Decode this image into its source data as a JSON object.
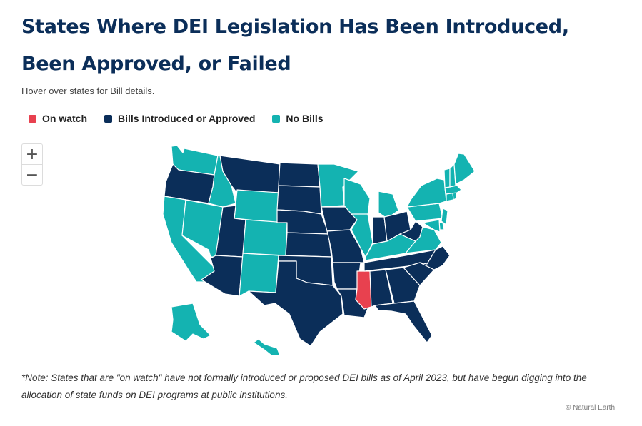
{
  "title": "States Where DEI Legislation Has Been Introduced, Been Approved, or Failed",
  "subtitle": "Hover over states for Bill details.",
  "legend": [
    {
      "label": "On watch",
      "color": "#e8414f"
    },
    {
      "label": "Bills Introduced or Approved",
      "color": "#0b2e59"
    },
    {
      "label": "No Bills",
      "color": "#14b3b1"
    }
  ],
  "zoom": {
    "in_icon": "plus-icon",
    "out_icon": "minus-icon",
    "in_label": "+",
    "out_label": "−"
  },
  "states": {
    "WA": "No Bills",
    "OR": "Bills Introduced or Approved",
    "CA": "No Bills",
    "NV": "No Bills",
    "ID": "No Bills",
    "MT": "Bills Introduced or Approved",
    "WY": "No Bills",
    "UT": "Bills Introduced or Approved",
    "AZ": "Bills Introduced or Approved",
    "CO": "No Bills",
    "NM": "No Bills",
    "ND": "Bills Introduced or Approved",
    "SD": "Bills Introduced or Approved",
    "NE": "Bills Introduced or Approved",
    "KS": "Bills Introduced or Approved",
    "OK": "Bills Introduced or Approved",
    "TX": "Bills Introduced or Approved",
    "MN": "No Bills",
    "IA": "Bills Introduced or Approved",
    "MO": "Bills Introduced or Approved",
    "AR": "Bills Introduced or Approved",
    "LA": "Bills Introduced or Approved",
    "WI": "No Bills",
    "IL": "No Bills",
    "MS": "On watch",
    "MI": "No Bills",
    "IN": "Bills Introduced or Approved",
    "KY": "No Bills",
    "TN": "Bills Introduced or Approved",
    "AL": "Bills Introduced or Approved",
    "OH": "Bills Introduced or Approved",
    "WV": "Bills Introduced or Approved",
    "GA": "Bills Introduced or Approved",
    "FL": "Bills Introduced or Approved",
    "SC": "Bills Introduced or Approved",
    "NC": "Bills Introduced or Approved",
    "VA": "No Bills",
    "PA": "No Bills",
    "NY": "No Bills",
    "NJ": "No Bills",
    "DE": "No Bills",
    "MD": "No Bills",
    "CT": "No Bills",
    "RI": "No Bills",
    "MA": "No Bills",
    "VT": "No Bills",
    "NH": "No Bills",
    "ME": "No Bills",
    "AK": "No Bills",
    "HI": "No Bills"
  },
  "note": "*Note: States that are \"on watch\" have not formally introduced or proposed DEI bills as of April 2023, but have begun digging into the allocation of state funds on DEI programs at public institutions.",
  "credit": "© Natural Earth"
}
